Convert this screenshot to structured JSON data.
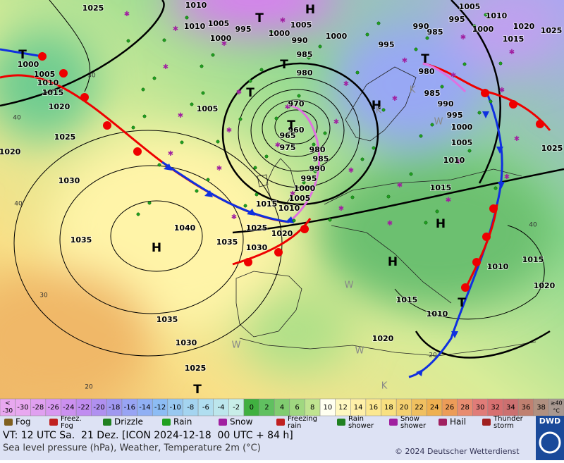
{
  "map": {
    "isobar_labels": [
      1025,
      1010,
      1010,
      1005,
      995,
      1000,
      1005,
      1000,
      990,
      985,
      1000,
      980,
      970,
      960,
      965,
      975,
      980,
      985,
      990,
      995,
      1000,
      1005,
      1010,
      1015,
      1025,
      1020,
      1030,
      1035,
      1040,
      1035,
      1030,
      1025,
      1020,
      1020,
      1015,
      1010,
      1005,
      1000,
      1035,
      1030,
      1025,
      1020,
      1015,
      1010,
      1010,
      1015,
      1020,
      1015,
      1010,
      1005,
      1000,
      995,
      990,
      985,
      980,
      990,
      985,
      995,
      1000,
      1005,
      1010,
      1015,
      1020,
      1025,
      1025,
      995,
      1005
    ],
    "centers": [
      "H",
      "H",
      "H",
      "H",
      "H",
      "T",
      "T",
      "T",
      "T",
      "T",
      "T",
      "T",
      "T"
    ],
    "isotherm_labels": [
      40,
      40,
      40,
      30,
      30,
      20,
      20
    ],
    "air_mass_labels": [
      "W",
      "W",
      "W",
      "W",
      "K",
      "K",
      "K"
    ]
  },
  "temperature_scale": {
    "lower": {
      "symbol": "<",
      "value": -30
    },
    "values": [
      -30,
      -28,
      -26,
      -24,
      -22,
      -20,
      -18,
      -16,
      -14,
      -12,
      -10,
      -8,
      -6,
      -4,
      -2,
      0,
      2,
      4,
      6,
      8,
      10,
      12,
      14,
      16,
      18,
      20,
      22,
      24,
      26,
      28,
      30,
      32,
      34,
      36,
      38
    ],
    "upper": {
      "symbol": "≥40",
      "unit": "°C"
    },
    "colors": [
      "#e8a8f0",
      "#e0a0f0",
      "#d898f0",
      "#cc90f0",
      "#c08cf0",
      "#b090f0",
      "#a098f0",
      "#98a4f4",
      "#90b0f4",
      "#8cbcf4",
      "#98c8f0",
      "#a4d4f0",
      "#b0def0",
      "#bce6ec",
      "#c8eee8",
      "#40b040",
      "#60c060",
      "#80cc70",
      "#a0d880",
      "#c0e490",
      "#fffff0",
      "#fff8c0",
      "#fff0a8",
      "#fce890",
      "#f8e080",
      "#f4d070",
      "#f0c060",
      "#eeb050",
      "#ec9c58",
      "#e88c70",
      "#e07c78",
      "#d87070",
      "#cc7070",
      "#c08070",
      "#b09080",
      "#a89890"
    ]
  },
  "weather_legend": [
    [
      "Fog"
    ],
    [
      "Freez.",
      "Fog"
    ],
    [
      "Drizzle"
    ],
    [
      "Rain"
    ],
    [
      "Snow"
    ],
    [
      "Freezing",
      "rain"
    ],
    [
      "Rain",
      "shower"
    ],
    [
      "Snow",
      "shower"
    ],
    [
      "Hail"
    ],
    [
      "Thunder",
      "storm"
    ]
  ],
  "footer": {
    "valid_time": "VT: 12 UTC Sa.  21 Dez. [ICON 2024-12-18  00 UTC + 84 h]",
    "description": "Sea level pressure (hPa), Weather, Temperature 2m (°C)",
    "copyright": "© 2024 Deutscher Wetterdienst",
    "logo": "DWD"
  }
}
